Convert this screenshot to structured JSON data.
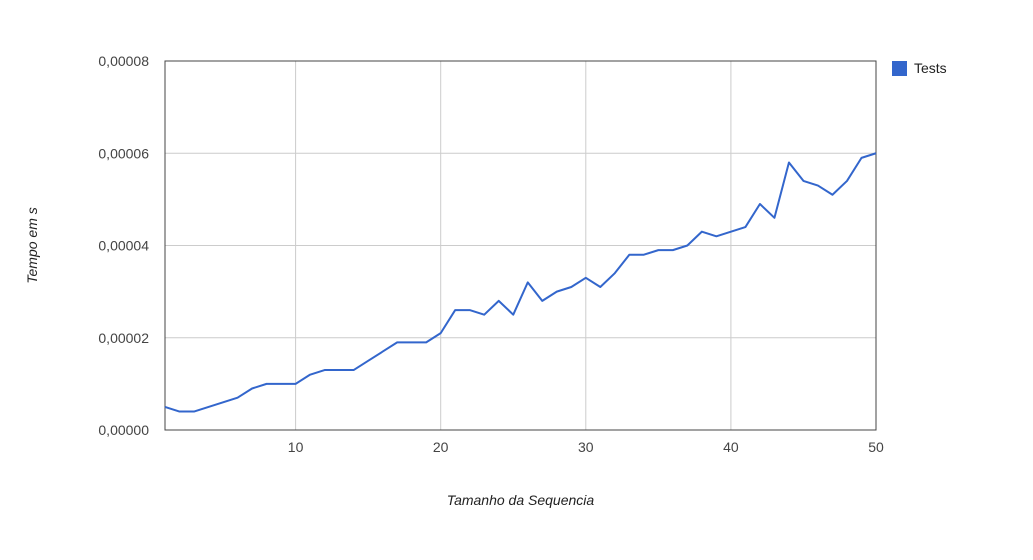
{
  "chart_data": {
    "type": "line",
    "title": "",
    "xlabel": "Tamanho da Sequencia",
    "ylabel": "Tempo em s",
    "xlim": [
      1,
      50
    ],
    "ylim": [
      0,
      8e-05
    ],
    "x_ticks": [
      10,
      20,
      30,
      40,
      50
    ],
    "x_tick_labels": [
      "10",
      "20",
      "30",
      "40",
      "50"
    ],
    "y_ticks": [
      0,
      2e-05,
      4e-05,
      6e-05,
      8e-05
    ],
    "y_tick_labels": [
      "0,00000",
      "0,00002",
      "0,00004",
      "0,00006",
      "0,00008"
    ],
    "grid": true,
    "legend_position": "right",
    "x": [
      1,
      2,
      3,
      4,
      5,
      6,
      7,
      8,
      9,
      10,
      11,
      12,
      13,
      14,
      15,
      16,
      17,
      18,
      19,
      20,
      21,
      22,
      23,
      24,
      25,
      26,
      27,
      28,
      29,
      30,
      31,
      32,
      33,
      34,
      35,
      36,
      37,
      38,
      39,
      40,
      41,
      42,
      43,
      44,
      45,
      46,
      47,
      48,
      49,
      50
    ],
    "series": [
      {
        "name": "Tests",
        "color": "#3366cc",
        "values": [
          5e-06,
          4e-06,
          4e-06,
          5e-06,
          6e-06,
          7e-06,
          9e-06,
          1e-05,
          1e-05,
          1e-05,
          1.2e-05,
          1.3e-05,
          1.3e-05,
          1.3e-05,
          1.5e-05,
          1.7e-05,
          1.9e-05,
          1.9e-05,
          1.9e-05,
          2.1e-05,
          2.6e-05,
          2.6e-05,
          2.5e-05,
          2.8e-05,
          2.5e-05,
          3.2e-05,
          2.8e-05,
          3e-05,
          3.1e-05,
          3.3e-05,
          3.1e-05,
          3.4e-05,
          3.8e-05,
          3.8e-05,
          3.9e-05,
          3.9e-05,
          4e-05,
          4.3e-05,
          4.2e-05,
          4.3e-05,
          4.4e-05,
          4.9e-05,
          4.6e-05,
          5.8e-05,
          5.4e-05,
          5.3e-05,
          5.1e-05,
          5.4e-05,
          5.9e-05,
          6e-05
        ]
      }
    ]
  }
}
